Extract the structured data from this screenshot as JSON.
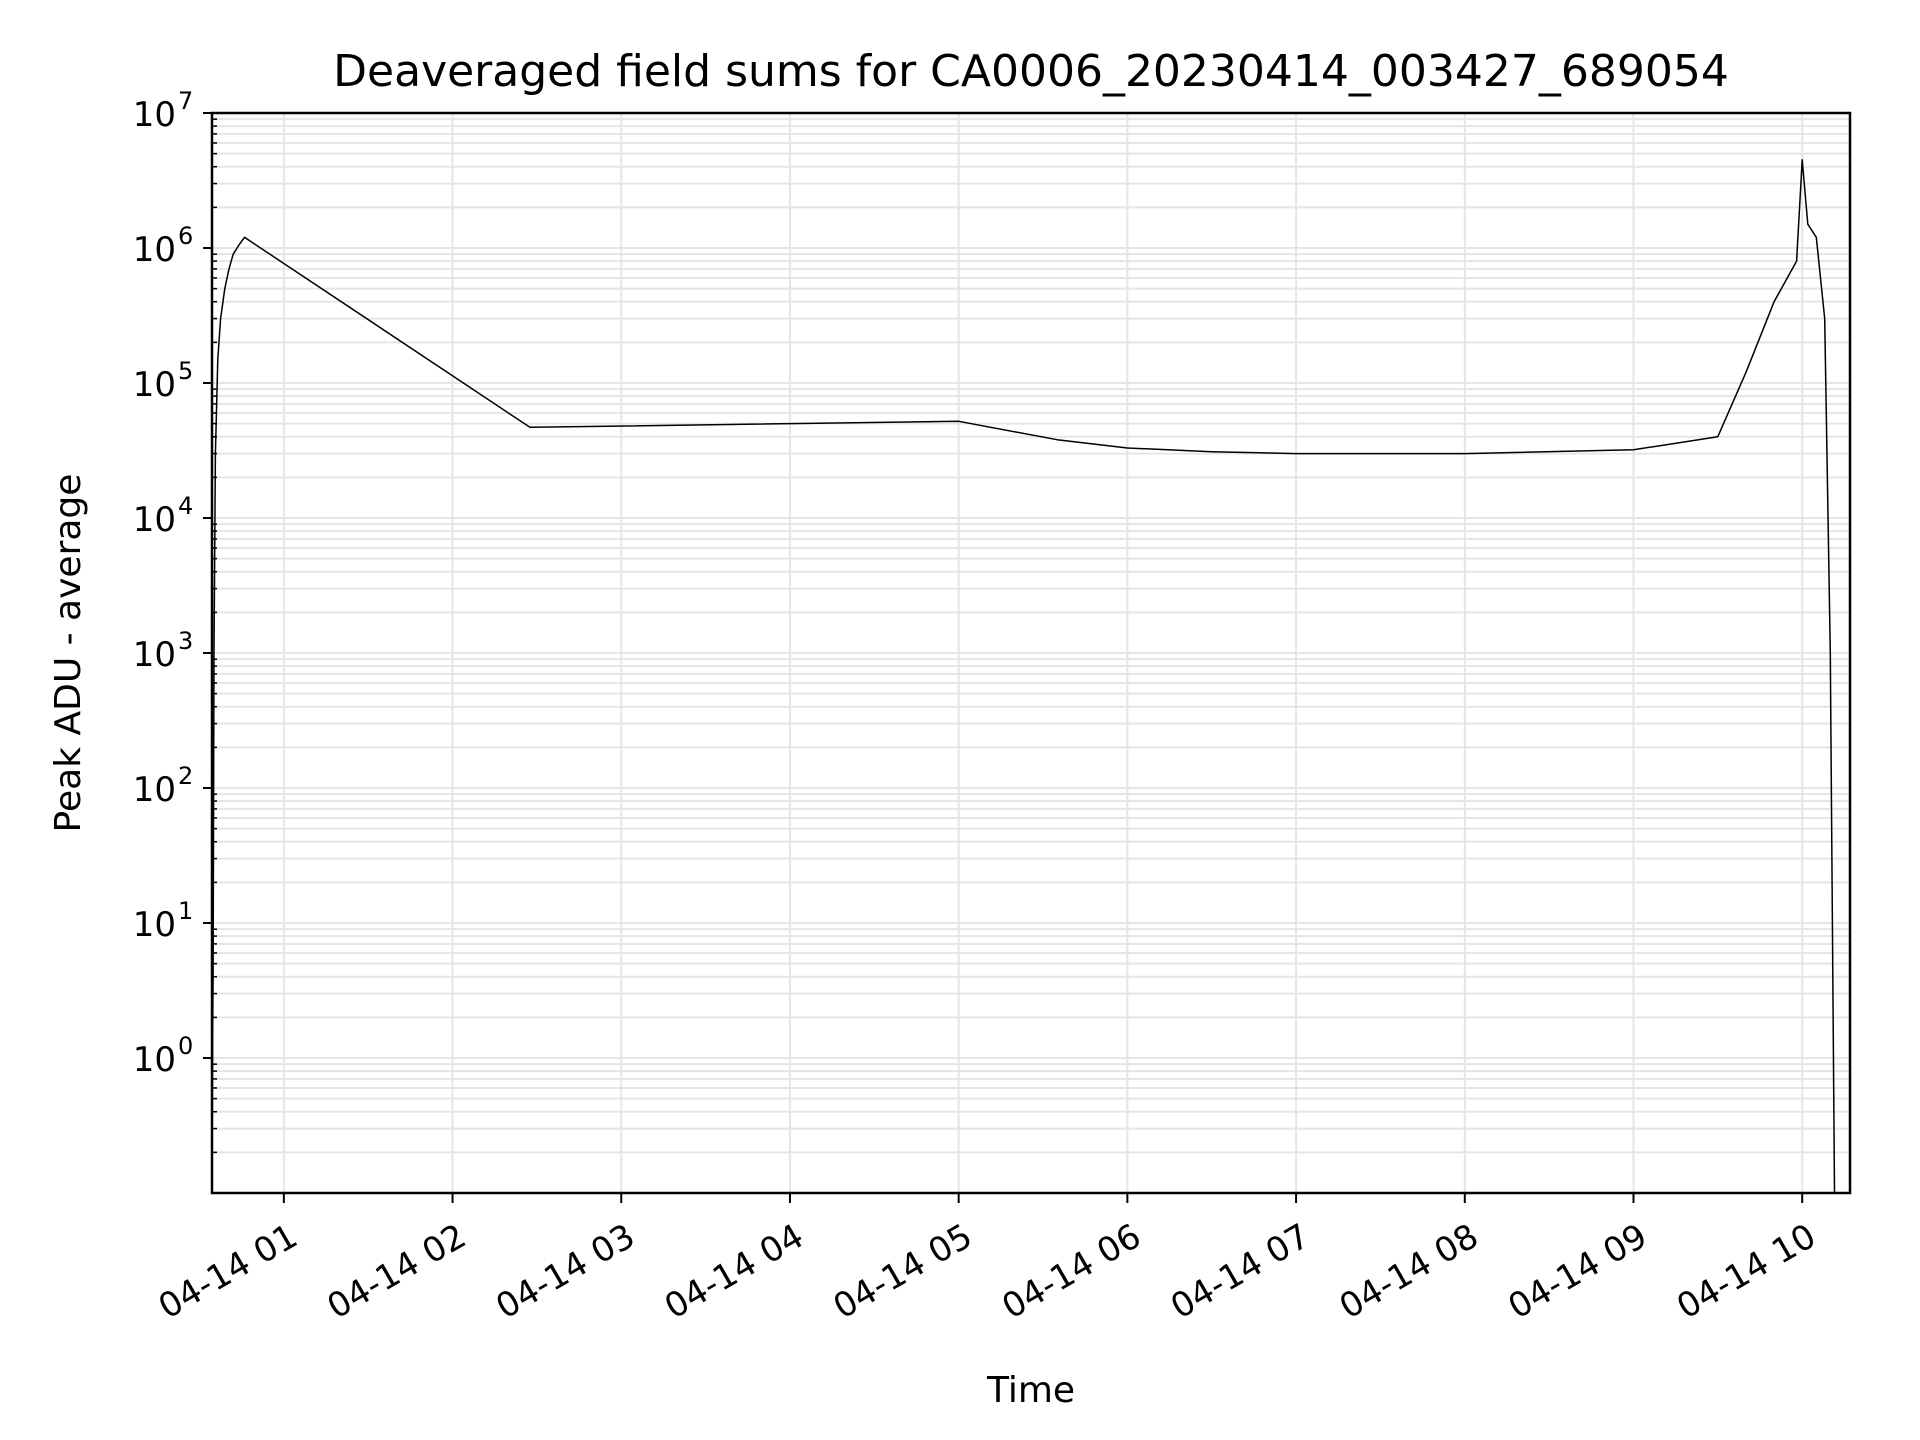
{
  "chart_data": {
    "type": "line",
    "title": "Deaveraged field sums for CA0006_20230414_003427_689054",
    "xlabel": "Time",
    "ylabel": "Peak ADU - average",
    "yscale": "log",
    "ylim": [
      0.1,
      10000000
    ],
    "xlim": [
      "2023-04-14 00:34:27",
      "2023-04-14 10:17:00"
    ],
    "grid": true,
    "line_color": "#000000",
    "grid_color": "#e5e5e5",
    "x_ticks": [
      {
        "t": "2023-04-14 01:00",
        "label": "04-14 01"
      },
      {
        "t": "2023-04-14 02:00",
        "label": "04-14 02"
      },
      {
        "t": "2023-04-14 03:00",
        "label": "04-14 03"
      },
      {
        "t": "2023-04-14 04:00",
        "label": "04-14 04"
      },
      {
        "t": "2023-04-14 05:00",
        "label": "04-14 05"
      },
      {
        "t": "2023-04-14 06:00",
        "label": "04-14 06"
      },
      {
        "t": "2023-04-14 07:00",
        "label": "04-14 07"
      },
      {
        "t": "2023-04-14 08:00",
        "label": "04-14 08"
      },
      {
        "t": "2023-04-14 09:00",
        "label": "04-14 09"
      },
      {
        "t": "2023-04-14 10:00",
        "label": "04-14 10"
      }
    ],
    "y_ticks": [
      {
        "value": 1,
        "base": "10",
        "exp": "0"
      },
      {
        "value": 10,
        "base": "10",
        "exp": "1"
      },
      {
        "value": 100,
        "base": "10",
        "exp": "2"
      },
      {
        "value": 1000,
        "base": "10",
        "exp": "3"
      },
      {
        "value": 10000,
        "base": "10",
        "exp": "4"
      },
      {
        "value": 100000,
        "base": "10",
        "exp": "5"
      },
      {
        "value": 1000000,
        "base": "10",
        "exp": "6"
      },
      {
        "value": 10000000,
        "base": "10",
        "exp": "7"
      }
    ],
    "series": [
      {
        "points": [
          [
            "2023-04-14 00:34:27",
            0.1
          ],
          [
            "2023-04-14 00:34:40",
            1.4
          ],
          [
            "2023-04-14 00:34:50",
            3.8
          ],
          [
            "2023-04-14 00:35:10",
            1000
          ],
          [
            "2023-04-14 00:35:40",
            30000
          ],
          [
            "2023-04-14 00:36:30",
            150000
          ],
          [
            "2023-04-14 00:37:30",
            300000
          ],
          [
            "2023-04-14 00:39:00",
            500000
          ],
          [
            "2023-04-14 00:40:30",
            700000
          ],
          [
            "2023-04-14 00:42:00",
            900000
          ],
          [
            "2023-04-14 00:44:00",
            1050000
          ],
          [
            "2023-04-14 00:46:00",
            1200000
          ],
          [
            "2023-04-14 02:27:30",
            47000
          ],
          [
            "2023-04-14 05:00:00",
            52000
          ],
          [
            "2023-04-14 05:35:00",
            38000
          ],
          [
            "2023-04-14 06:00:00",
            33000
          ],
          [
            "2023-04-14 06:30:00",
            31000
          ],
          [
            "2023-04-14 07:00:00",
            30000
          ],
          [
            "2023-04-14 08:00:00",
            30000
          ],
          [
            "2023-04-14 09:00:00",
            32000
          ],
          [
            "2023-04-14 09:30:00",
            40000
          ],
          [
            "2023-04-14 09:40:00",
            120000
          ],
          [
            "2023-04-14 09:50:00",
            400000
          ],
          [
            "2023-04-14 09:58:00",
            800000
          ],
          [
            "2023-04-14 10:00:00",
            4500000
          ],
          [
            "2023-04-14 10:02:00",
            1500000
          ],
          [
            "2023-04-14 10:05:00",
            1200000
          ],
          [
            "2023-04-14 10:08:00",
            300000
          ],
          [
            "2023-04-14 10:10:00",
            1000
          ],
          [
            "2023-04-14 10:11:30",
            0.1
          ]
        ]
      }
    ]
  }
}
